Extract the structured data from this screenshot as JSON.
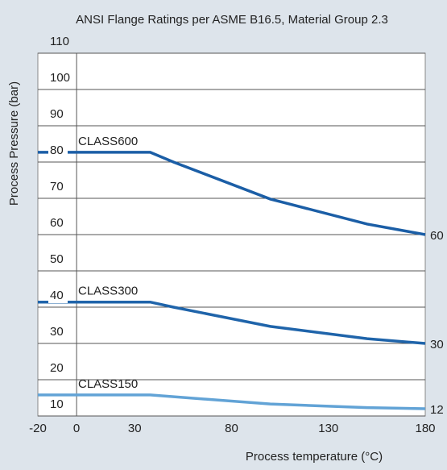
{
  "chart_data": {
    "type": "line",
    "title": "ANSI Flange Ratings per ASME B16.5, Material Group 2.3",
    "x_label": "Process temperature (°C)",
    "y_label": "Process Pressure (bar)",
    "xlim": [
      -20,
      180
    ],
    "xticks": [
      -20,
      0,
      30,
      80,
      130,
      180
    ],
    "ylim": [
      10,
      110
    ],
    "yticks": [
      10,
      20,
      30,
      40,
      50,
      60,
      70,
      80,
      90,
      100,
      110
    ],
    "grid": true,
    "series": [
      {
        "name": "CLASS600",
        "color": "#1b5ea6",
        "x": [
          -20,
          38,
          50,
          100,
          150,
          180
        ],
        "values": [
          82.7,
          82.7,
          80,
          69.8,
          62.9,
          60
        ]
      },
      {
        "name": "CLASS300",
        "color": "#1f64aa",
        "x": [
          -20,
          38,
          50,
          100,
          150,
          180
        ],
        "values": [
          41.4,
          41.4,
          40,
          34.7,
          31.3,
          30
        ]
      },
      {
        "name": "CLASS150",
        "color": "#62a3d6",
        "x": [
          -20,
          38,
          100,
          150,
          180
        ],
        "values": [
          15.8,
          15.8,
          13.3,
          12.3,
          12
        ]
      }
    ]
  }
}
